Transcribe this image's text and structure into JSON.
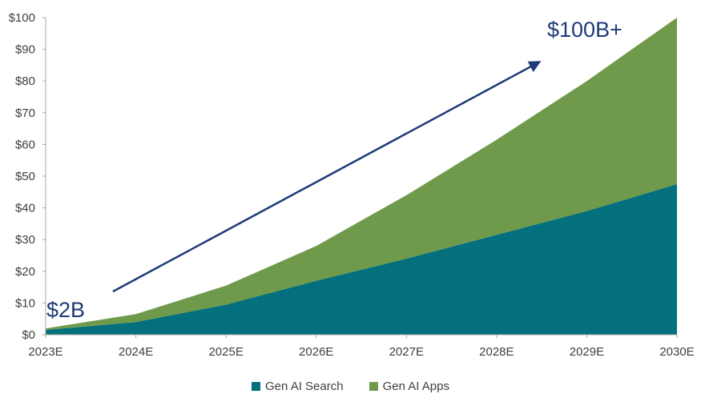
{
  "chart_data": {
    "type": "area",
    "stacked": true,
    "categories": [
      "2023E",
      "2024E",
      "2025E",
      "2026E",
      "2027E",
      "2028E",
      "2029E",
      "2030E"
    ],
    "x_tick_labels": [
      "2023E",
      "2024E",
      "2025E",
      "2026E",
      "2027E",
      "2028E",
      "2029E",
      "2030E"
    ],
    "y_tick_labels": [
      "$0",
      "$10",
      "$20",
      "$30",
      "$40",
      "$50",
      "$60",
      "$70",
      "$80",
      "$90",
      "$100"
    ],
    "ylim": [
      0,
      100
    ],
    "y_ticks": [
      0,
      10,
      20,
      30,
      40,
      50,
      60,
      70,
      80,
      90,
      100
    ],
    "series": [
      {
        "name": "Gen AI Search",
        "color": "#04707d",
        "values": [
          1.5,
          4,
          9.5,
          17,
          24,
          31.5,
          39,
          47.5
        ]
      },
      {
        "name": "Gen AI Apps",
        "color": "#6f9a4c",
        "values": [
          0.5,
          2.5,
          6,
          11,
          20,
          30,
          41,
          52.5
        ]
      }
    ],
    "annotations": [
      {
        "text": "$2B",
        "color": "#1f3a78"
      },
      {
        "text": "$100B+",
        "color": "#1f3a78"
      }
    ],
    "trend_arrow_color": "#1f3a78",
    "grid": false,
    "legend_position": "bottom"
  }
}
